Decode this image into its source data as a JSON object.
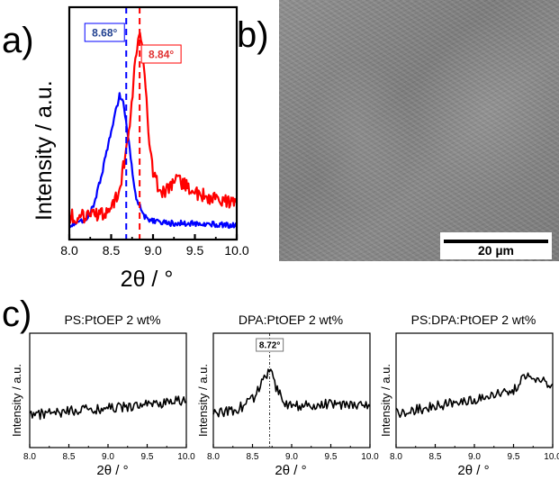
{
  "panels": {
    "a": "a)",
    "b": "b)",
    "c": "c)"
  },
  "sem": {
    "scale_label": "20 µm"
  },
  "chart_data": [
    {
      "id": "a",
      "type": "line",
      "xlabel": "2θ / °",
      "ylabel": "Intensity / a.u.",
      "xlim": [
        8.0,
        10.0
      ],
      "ylim": [
        0,
        1
      ],
      "xticks": [
        "8.0",
        "8.5",
        "9.0",
        "9.5",
        "10.0"
      ],
      "series": [
        {
          "color": "#0000ff",
          "x": [
            8.0,
            8.1,
            8.2,
            8.3,
            8.4,
            8.5,
            8.6,
            8.65,
            8.7,
            8.75,
            8.8,
            8.9,
            9.0,
            9.2,
            9.5,
            10.0
          ],
          "y": [
            0.06,
            0.07,
            0.09,
            0.15,
            0.3,
            0.47,
            0.62,
            0.58,
            0.45,
            0.3,
            0.18,
            0.1,
            0.08,
            0.07,
            0.07,
            0.06
          ]
        },
        {
          "color": "#ff0000",
          "x": [
            8.0,
            8.2,
            8.4,
            8.5,
            8.6,
            8.7,
            8.75,
            8.8,
            8.84,
            8.9,
            8.95,
            9.0,
            9.1,
            9.2,
            9.3,
            9.5,
            9.7,
            10.0
          ],
          "y": [
            0.1,
            0.1,
            0.11,
            0.14,
            0.22,
            0.42,
            0.62,
            0.8,
            0.92,
            0.7,
            0.45,
            0.28,
            0.2,
            0.22,
            0.26,
            0.2,
            0.18,
            0.16
          ]
        }
      ],
      "markers": [
        {
          "x": 8.68,
          "label": "8.68°",
          "color": "#0000ff",
          "label_color": "#1f3f8f"
        },
        {
          "x": 8.84,
          "label": "8.84°",
          "color": "#ff0000",
          "label_color": "#e03030"
        }
      ]
    },
    {
      "id": "c1",
      "type": "line",
      "title": "PS:PtOEP 2 wt%",
      "xlabel": "2θ / °",
      "ylabel": "Intensity / a.u.",
      "xlim": [
        8.0,
        10.0
      ],
      "ylim": [
        0,
        1
      ],
      "xticks": [
        "8.0",
        "8.5",
        "9.0",
        "9.5",
        "10.0"
      ],
      "series": [
        {
          "color": "#000000",
          "x": [
            8.0,
            8.5,
            9.0,
            9.5,
            10.0
          ],
          "y": [
            0.28,
            0.32,
            0.34,
            0.38,
            0.41
          ]
        }
      ]
    },
    {
      "id": "c2",
      "type": "line",
      "title": "DPA:PtOEP 2 wt%",
      "xlabel": "2θ / °",
      "ylabel": "Intensity / a.u.",
      "xlim": [
        8.0,
        10.0
      ],
      "ylim": [
        0,
        1
      ],
      "xticks": [
        "8.0",
        "8.5",
        "9.0",
        "9.5",
        "10.0"
      ],
      "series": [
        {
          "color": "#000000",
          "x": [
            8.0,
            8.3,
            8.5,
            8.6,
            8.7,
            8.72,
            8.8,
            8.9,
            9.0,
            9.5,
            10.0
          ],
          "y": [
            0.3,
            0.33,
            0.42,
            0.55,
            0.66,
            0.7,
            0.52,
            0.4,
            0.36,
            0.38,
            0.38
          ]
        }
      ],
      "markers": [
        {
          "x": 8.72,
          "label": "8.72°",
          "color": "#000000",
          "label_color": "#000000"
        }
      ]
    },
    {
      "id": "c3",
      "type": "line",
      "title": "PS:DPA:PtOEP 2 wt%",
      "xlabel": "2θ / °",
      "ylabel": "Intensity / a.u.",
      "xlim": [
        8.0,
        10.0
      ],
      "ylim": [
        0,
        1
      ],
      "xticks": [
        "8.0",
        "8.5",
        "9.0",
        "9.5",
        "10.0"
      ],
      "series": [
        {
          "color": "#000000",
          "x": [
            8.0,
            8.5,
            9.0,
            9.5,
            9.65,
            10.0
          ],
          "y": [
            0.3,
            0.36,
            0.42,
            0.5,
            0.62,
            0.55
          ]
        }
      ]
    }
  ]
}
